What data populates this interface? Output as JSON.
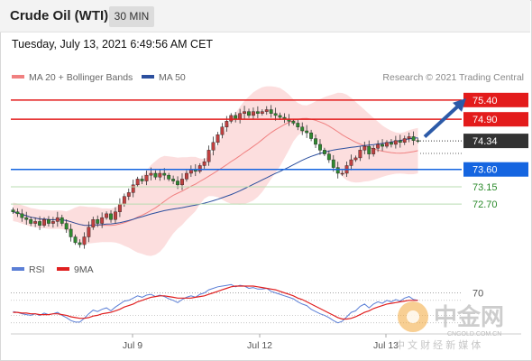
{
  "header": {
    "title": "Crude Oil (WTI)",
    "timeframe": "30 MIN"
  },
  "timestamp": "Tuesday, July 13, 2021 6:49:56 AM CET",
  "legend": {
    "ma20": {
      "label": "MA 20 + Bollinger Bands",
      "color": "#f08080"
    },
    "ma50": {
      "label": "MA 50",
      "color": "#2c4f9e"
    }
  },
  "copyright": "Research © 2021 Trading Central",
  "rsi_legend": {
    "rsi": {
      "label": "RSI",
      "color": "#5b7fd6"
    },
    "ma9": {
      "label": "9MA",
      "color": "#e02020"
    }
  },
  "chart_data": {
    "type": "candlestick",
    "instrument": "Crude Oil (WTI)",
    "interval": "30 MIN",
    "y_range": [
      71.3,
      75.7
    ],
    "x_ticks": [
      "Jul 9",
      "Jul 12",
      "Jul 13"
    ],
    "levels": [
      {
        "value": "75.40",
        "kind": "resistance",
        "color": "#e31b1b"
      },
      {
        "value": "74.90",
        "kind": "resistance",
        "color": "#e31b1b"
      },
      {
        "value": "74.34",
        "kind": "last",
        "color": "#333333"
      },
      {
        "value": "73.60",
        "kind": "support",
        "color": "#1565e0"
      },
      {
        "value": "73.15",
        "kind": "support-minor",
        "color": "#2a8a2a"
      },
      {
        "value": "72.70",
        "kind": "support-minor",
        "color": "#2a8a2a"
      }
    ],
    "closes": [
      72.5,
      72.45,
      72.35,
      72.3,
      72.2,
      72.25,
      72.15,
      72.3,
      72.2,
      72.25,
      72.35,
      72.2,
      72.05,
      71.85,
      71.7,
      71.65,
      71.85,
      72.1,
      72.3,
      72.2,
      72.35,
      72.45,
      72.3,
      72.5,
      72.7,
      72.9,
      73.0,
      73.2,
      73.35,
      73.3,
      73.45,
      73.5,
      73.4,
      73.5,
      73.45,
      73.35,
      73.3,
      73.2,
      73.35,
      73.5,
      73.6,
      73.55,
      73.7,
      73.8,
      74.1,
      74.3,
      74.5,
      74.7,
      74.85,
      75.0,
      74.9,
      75.05,
      75.1,
      75.0,
      75.1,
      75.05,
      75.1,
      75.15,
      75.05,
      75.0,
      74.95,
      74.9,
      74.85,
      74.8,
      74.7,
      74.6,
      74.55,
      74.4,
      74.25,
      74.1,
      74.0,
      73.85,
      73.65,
      73.5,
      73.5,
      73.7,
      73.85,
      73.9,
      74.1,
      74.2,
      74.0,
      74.15,
      74.25,
      74.2,
      74.3,
      74.25,
      74.35,
      74.3,
      74.4,
      74.45,
      74.35,
      74.34
    ],
    "rsi": {
      "levels": [
        "70"
      ],
      "values": [
        45,
        44,
        42,
        41,
        40,
        42,
        40,
        43,
        41,
        42,
        44,
        40,
        37,
        33,
        31,
        31,
        36,
        42,
        47,
        45,
        48,
        50,
        46,
        51,
        55,
        59,
        60,
        63,
        66,
        64,
        67,
        68,
        65,
        67,
        65,
        62,
        60,
        57,
        61,
        64,
        66,
        64,
        68,
        70,
        74,
        76,
        78,
        79,
        80,
        81,
        78,
        80,
        79,
        76,
        77,
        75,
        75,
        76,
        72,
        70,
        68,
        66,
        64,
        62,
        58,
        55,
        53,
        48,
        45,
        42,
        40,
        37,
        33,
        30,
        32,
        38,
        44,
        46,
        52,
        55,
        50,
        55,
        58,
        56,
        60,
        58,
        61,
        59,
        63,
        65,
        61,
        60
      ],
      "ma9": [
        44,
        44,
        43,
        43,
        42,
        42,
        41,
        41,
        41,
        42,
        42,
        41,
        40,
        38,
        37,
        36,
        36,
        37,
        39,
        40,
        42,
        43,
        44,
        46,
        48,
        51,
        53,
        55,
        58,
        60,
        62,
        64,
        65,
        66,
        66,
        65,
        64,
        63,
        63,
        63,
        63,
        64,
        65,
        66,
        68,
        70,
        72,
        74,
        76,
        78,
        79,
        79,
        79,
        79,
        79,
        78,
        77,
        76,
        75,
        74,
        72,
        70,
        68,
        66,
        63,
        61,
        58,
        55,
        52,
        49,
        46,
        43,
        40,
        37,
        35,
        35,
        36,
        38,
        41,
        44,
        46,
        49,
        51,
        53,
        55,
        56,
        57,
        58,
        59,
        60,
        60,
        60
      ]
    }
  },
  "watermark": {
    "brand": "中金网",
    "site": "CNGOLD.COM.CN",
    "tagline": "中 文 财 经 新 媒 体"
  }
}
